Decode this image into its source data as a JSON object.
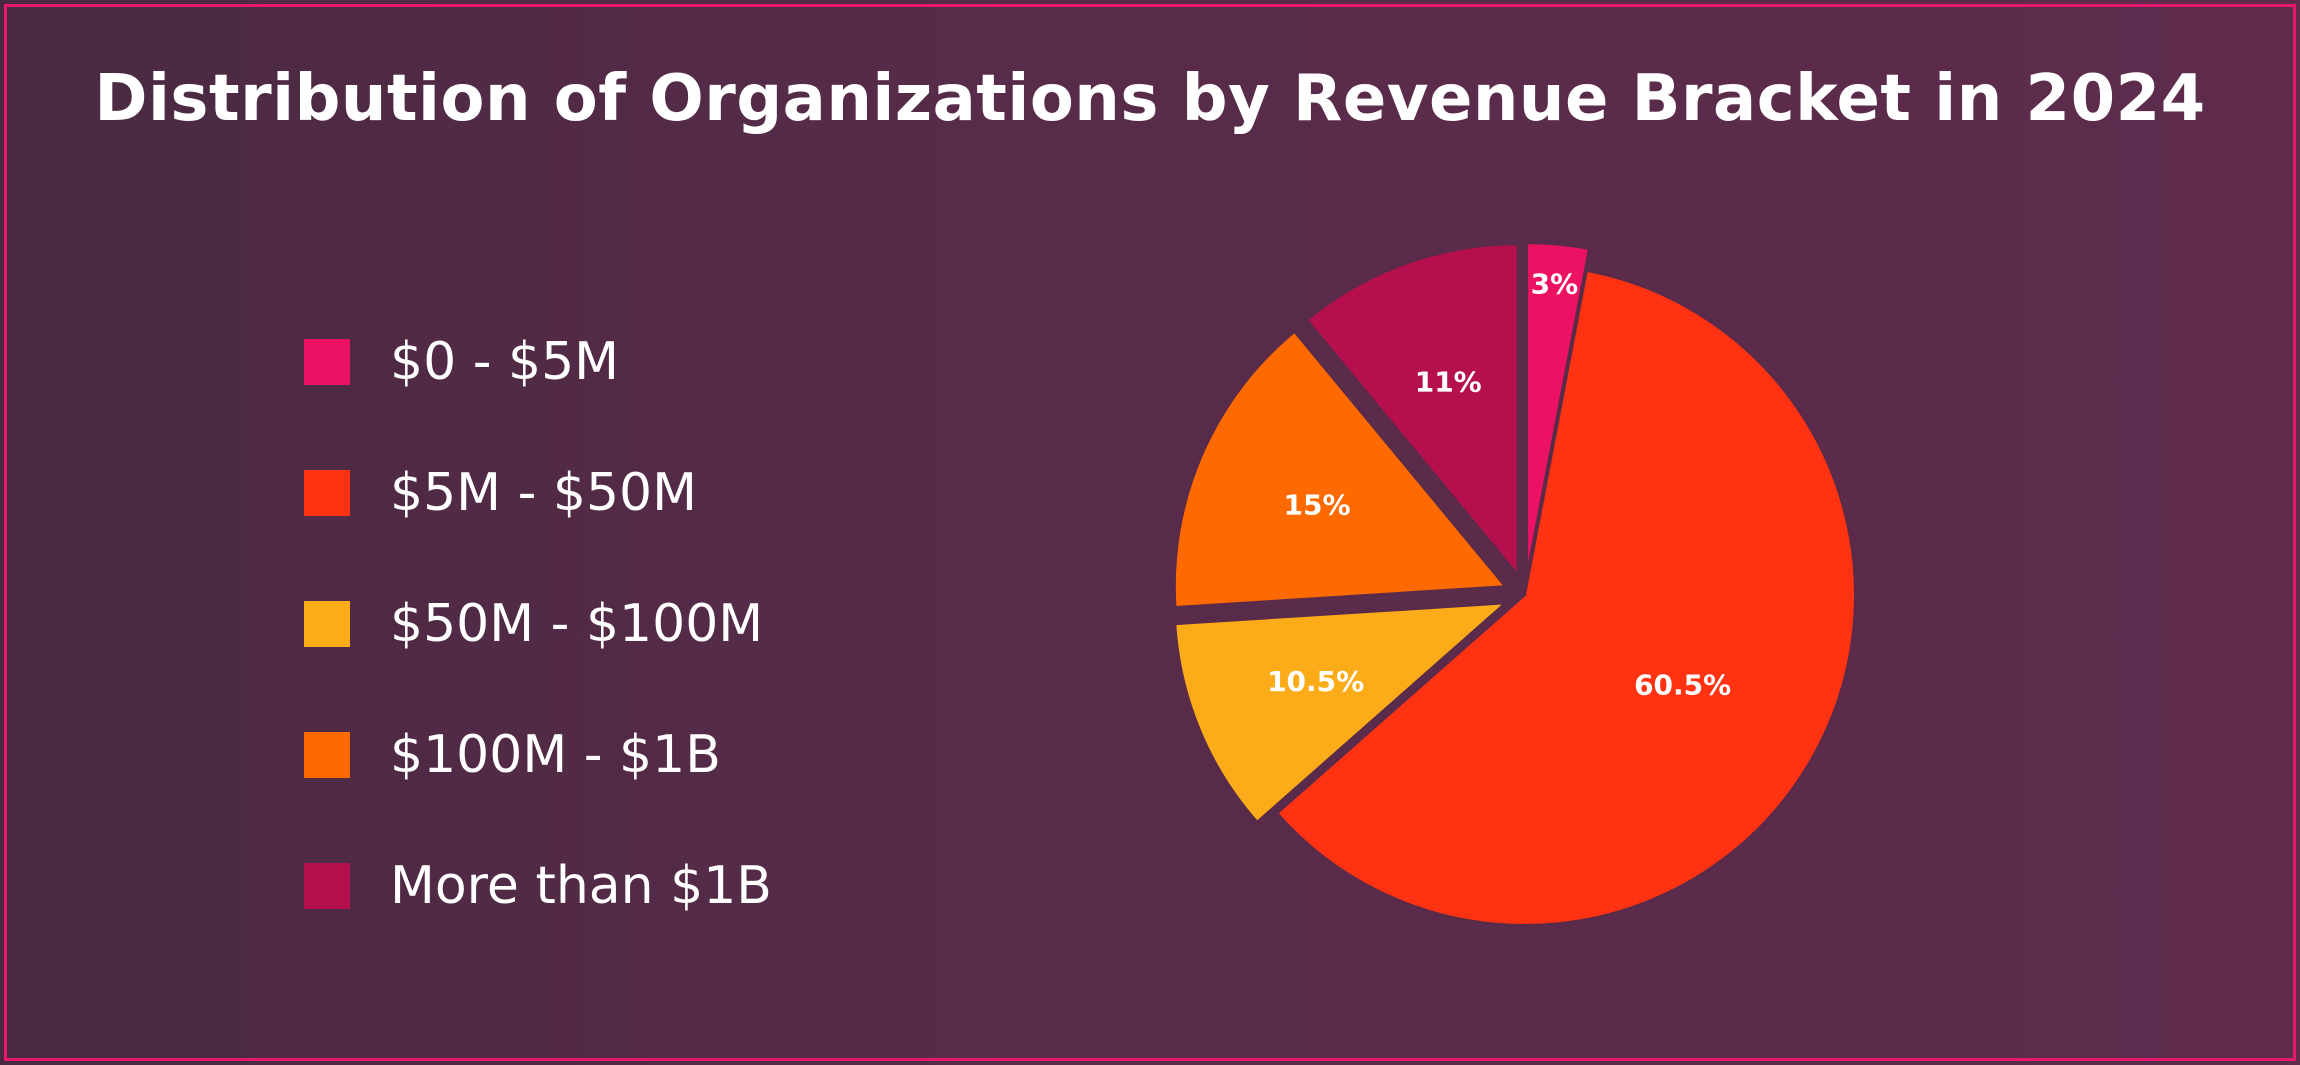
{
  "chart_data": {
    "type": "pie",
    "title": "Distribution of Organizations by Revenue Bracket in 2024",
    "legend_position": "left",
    "categories": [
      "$0 - $5M",
      "$5M - $50M",
      "$50M - $100M",
      "$100M - $1B",
      "More than $1B"
    ],
    "values": [
      3,
      60.5,
      10.5,
      15,
      11
    ],
    "labels": [
      "3%",
      "60.5%",
      "10.5%",
      "15%",
      "11%"
    ],
    "colors": [
      "#ed1164",
      "#ff3212",
      "#fcac18",
      "#ff6a00",
      "#b5104d"
    ]
  }
}
